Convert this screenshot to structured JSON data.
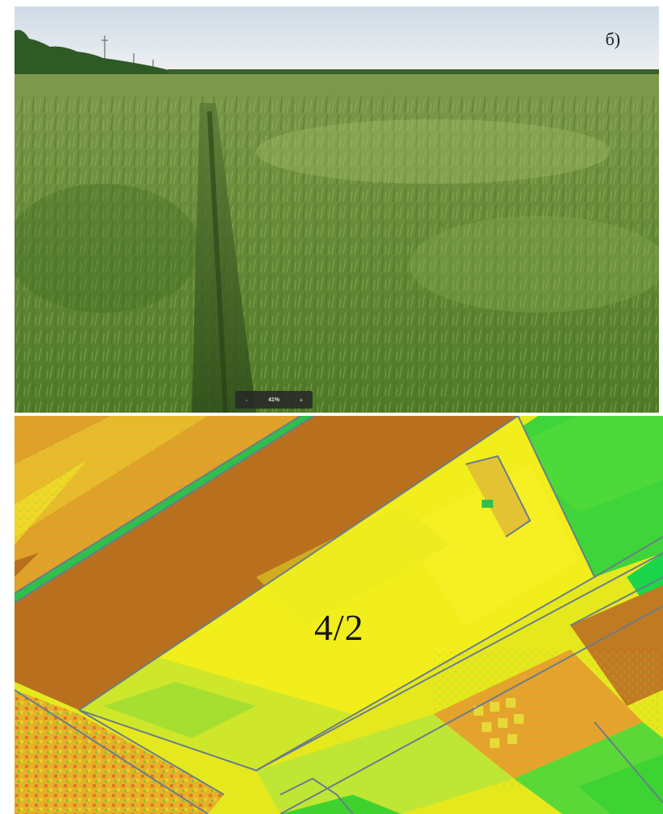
{
  "photo": {
    "panel_label": "б)",
    "zoom": {
      "minus": "-",
      "value": "41%",
      "plus": "+"
    }
  },
  "map": {
    "field_label": "4/2"
  },
  "colors": {
    "sky": "#dfe7ee",
    "treeline": "#2f5a26",
    "wheat": "#6f8f3e",
    "bare_soil": "#b8701f",
    "ndvi_yellow": "#f0ee1c",
    "ndvi_green": "#36d232",
    "field_border": "#6a7d8a"
  },
  "icons": [
    "zoom-minus-icon",
    "zoom-plus-icon"
  ]
}
